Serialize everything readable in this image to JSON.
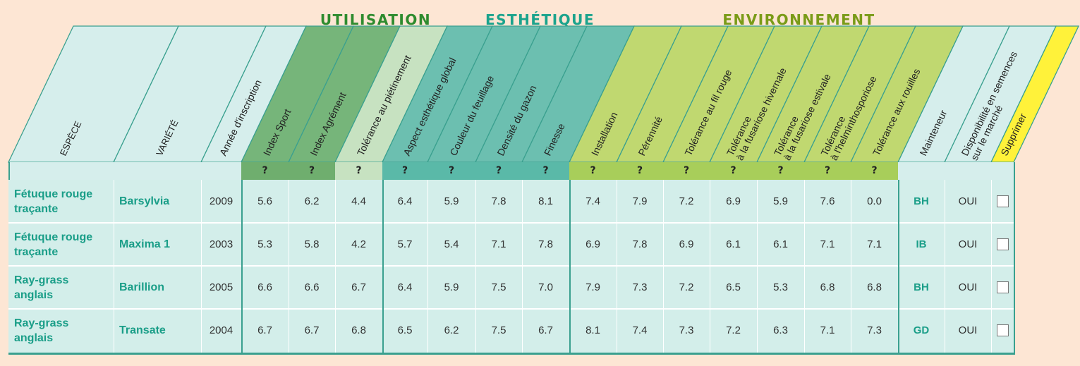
{
  "groups": {
    "utilisation": "UTILISATION",
    "esthetique": "ESTHÉTIQUE",
    "environnement": "ENVIRONNEMENT"
  },
  "columns": [
    {
      "key": "espece",
      "label": "ESPÈCE",
      "name": "col-espece",
      "help": false
    },
    {
      "key": "variete",
      "label": "VARIÉTÉ",
      "name": "col-variete",
      "help": false
    },
    {
      "key": "annee",
      "label": "Année d'inscription",
      "name": "col-annee",
      "help": false
    },
    {
      "key": "index_sport",
      "label": "Index Sport",
      "name": "col-index-sport",
      "help": true
    },
    {
      "key": "index_agrement",
      "label": "Index Agrément",
      "name": "col-index-agrement",
      "help": true
    },
    {
      "key": "tol_pietinement",
      "label": "Tolérance au piétinement",
      "name": "col-tolerance-pietinement",
      "help": true
    },
    {
      "key": "aspect_global",
      "label": "Aspect esthétique global",
      "name": "col-aspect-esthetique",
      "help": true
    },
    {
      "key": "couleur",
      "label": "Couleur du feuillage",
      "name": "col-couleur-feuillage",
      "help": true
    },
    {
      "key": "densite",
      "label": "Densité du gazon",
      "name": "col-densite-gazon",
      "help": true
    },
    {
      "key": "finesse",
      "label": "Finesse",
      "name": "col-finesse",
      "help": true
    },
    {
      "key": "installation",
      "label": "Installation",
      "name": "col-installation",
      "help": true
    },
    {
      "key": "perennite",
      "label": "Pérennité",
      "name": "col-perennite",
      "help": true
    },
    {
      "key": "fil_rouge",
      "label": "Tolérance au fil rouge",
      "name": "col-tolerance-fil-rouge",
      "help": true
    },
    {
      "key": "fus_hiv",
      "label": [
        "Tolérance",
        "à la fusariose hivernale"
      ],
      "name": "col-tolerance-fusariose-hivernale",
      "help": true
    },
    {
      "key": "fus_est",
      "label": [
        "Tolérance",
        "à la fusariose estivale"
      ],
      "name": "col-tolerance-fusariose-estivale",
      "help": true
    },
    {
      "key": "helmin",
      "label": [
        "Tolérance",
        "à l'helminthosporiose"
      ],
      "name": "col-tolerance-helminthosporiose",
      "help": true
    },
    {
      "key": "rouilles",
      "label": "Tolérance aux rouilles",
      "name": "col-tolerance-rouilles",
      "help": true
    },
    {
      "key": "mainteneur",
      "label": "Mainteneur",
      "name": "col-mainteneur",
      "help": false
    },
    {
      "key": "dispo",
      "label": [
        "Disponibilité en semences",
        "sur le marché"
      ],
      "name": "col-disponibilite",
      "help": false
    },
    {
      "key": "supprimer",
      "label": "Supprimer",
      "name": "col-supprimer",
      "help": false
    }
  ],
  "help_mark": "?",
  "rows": [
    {
      "espece": [
        "Fétuque rouge",
        "traçante"
      ],
      "variete": "Barsylvia",
      "annee": "2009",
      "values": [
        "5.6",
        "6.2",
        "4.4",
        "6.4",
        "5.9",
        "7.8",
        "8.1",
        "7.4",
        "7.9",
        "7.2",
        "6.9",
        "5.9",
        "7.6",
        "0.0"
      ],
      "mainteneur": "BH",
      "dispo": "OUI"
    },
    {
      "espece": [
        "Fétuque rouge",
        "traçante"
      ],
      "variete": "Maxima 1",
      "annee": "2003",
      "values": [
        "5.3",
        "5.8",
        "4.2",
        "5.7",
        "5.4",
        "7.1",
        "7.8",
        "6.9",
        "7.8",
        "6.9",
        "6.1",
        "6.1",
        "7.1",
        "7.1"
      ],
      "mainteneur": "IB",
      "dispo": "OUI"
    },
    {
      "espece": [
        "Ray-grass",
        "anglais"
      ],
      "variete": "Barillion",
      "annee": "2005",
      "values": [
        "6.6",
        "6.6",
        "6.7",
        "6.4",
        "5.9",
        "7.5",
        "7.0",
        "7.9",
        "7.3",
        "7.2",
        "6.5",
        "5.3",
        "6.8",
        "6.8"
      ],
      "mainteneur": "BH",
      "dispo": "OUI"
    },
    {
      "espece": [
        "Ray-grass",
        "anglais"
      ],
      "variete": "Transate",
      "annee": "2004",
      "values": [
        "6.7",
        "6.7",
        "6.8",
        "6.5",
        "6.2",
        "7.5",
        "6.7",
        "8.1",
        "7.4",
        "7.3",
        "7.2",
        "6.3",
        "7.1",
        "7.3"
      ],
      "mainteneur": "GD",
      "dispo": "OUI"
    }
  ],
  "colors": {
    "page_bg": "#fde6d4",
    "table_bg": "#d3eeea",
    "header_light": "#d6eeec",
    "utilisation_dark": "#76b57a",
    "utilisation_light": "#c7e2c1",
    "esthetique": "#6cbfb0",
    "environnement": "#c0d870",
    "supprimer": "#fff23a",
    "border": "#3aa08f",
    "accent_text": "#1a9e88",
    "utilisation_title": "#2e8b2e",
    "esthetique_title": "#1aa38c",
    "environnement_title": "#7a9b17"
  }
}
